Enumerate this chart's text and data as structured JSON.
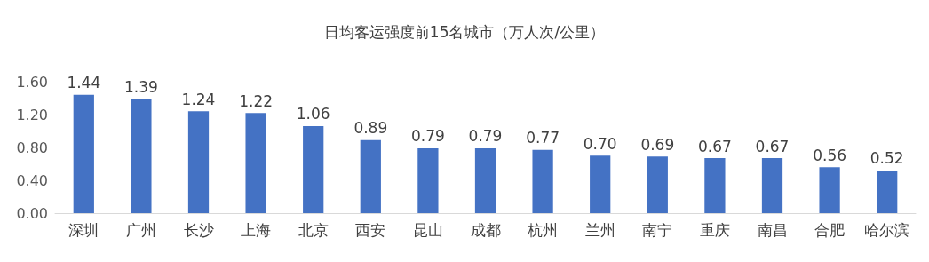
{
  "chart_data": {
    "type": "bar",
    "title": "日均客运强度前15名城市（万人次/公里）",
    "categories": [
      "深圳",
      "广州",
      "长沙",
      "上海",
      "北京",
      "西安",
      "昆山",
      "成都",
      "杭州",
      "兰州",
      "南宁",
      "重庆",
      "南昌",
      "合肥",
      "哈尔滨"
    ],
    "values": [
      1.44,
      1.39,
      1.24,
      1.22,
      1.06,
      0.89,
      0.79,
      0.79,
      0.77,
      0.7,
      0.69,
      0.67,
      0.67,
      0.56,
      0.52
    ],
    "value_labels": [
      "1.44",
      "1.39",
      "1.24",
      "1.22",
      "1.06",
      "0.89",
      "0.79",
      "0.79",
      "0.77",
      "0.70",
      "0.69",
      "0.67",
      "0.67",
      "0.56",
      "0.52"
    ],
    "color": "#4472c4",
    "ylim": [
      0,
      1.6
    ],
    "yticks": [
      {
        "value": 0,
        "label": "0.00"
      },
      {
        "value": 0.4,
        "label": "0.40"
      },
      {
        "value": 0.8,
        "label": "0.80"
      },
      {
        "value": 1.2,
        "label": "1.20"
      },
      {
        "value": 1.6,
        "label": "1.60"
      }
    ],
    "grid": false
  }
}
